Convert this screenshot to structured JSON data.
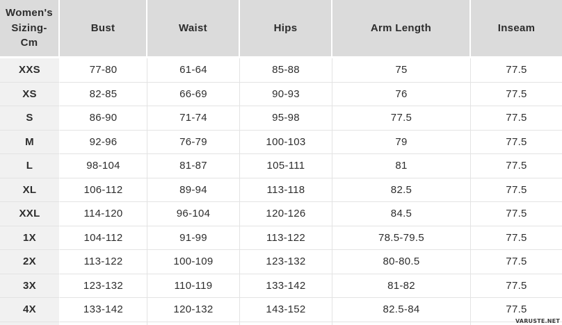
{
  "table": {
    "corner_header": "Women's Sizing- Cm",
    "columns": [
      "Bust",
      "Waist",
      "Hips",
      "Arm Length",
      "Inseam"
    ],
    "rows": [
      {
        "size": "XXS",
        "values": [
          "77-80",
          "61-64",
          "85-88",
          "75",
          "77.5"
        ]
      },
      {
        "size": "XS",
        "values": [
          "82-85",
          "66-69",
          "90-93",
          "76",
          "77.5"
        ]
      },
      {
        "size": "S",
        "values": [
          "86-90",
          "71-74",
          "95-98",
          "77.5",
          "77.5"
        ]
      },
      {
        "size": "M",
        "values": [
          "92-96",
          "76-79",
          "100-103",
          "79",
          "77.5"
        ]
      },
      {
        "size": "L",
        "values": [
          "98-104",
          "81-87",
          "105-111",
          "81",
          "77.5"
        ]
      },
      {
        "size": "XL",
        "values": [
          "106-112",
          "89-94",
          "113-118",
          "82.5",
          "77.5"
        ]
      },
      {
        "size": "XXL",
        "values": [
          "114-120",
          "96-104",
          "120-126",
          "84.5",
          "77.5"
        ]
      },
      {
        "size": "1X",
        "values": [
          "104-112",
          "91-99",
          "113-122",
          "78.5-79.5",
          "77.5"
        ]
      },
      {
        "size": "2X",
        "values": [
          "113-122",
          "100-109",
          "123-132",
          "80-80.5",
          "77.5"
        ]
      },
      {
        "size": "3X",
        "values": [
          "123-132",
          "110-119",
          "133-142",
          "81-82",
          "77.5"
        ]
      },
      {
        "size": "4X",
        "values": [
          "133-142",
          "120-132",
          "143-152",
          "82.5-84",
          "77.5"
        ]
      }
    ]
  },
  "watermark": "VARUSTE.NET",
  "colors": {
    "header_bg": "#dbdbdb",
    "size_column_bg": "#f1f1f1",
    "cell_bg": "#ffffff",
    "border": "#e3e3e3",
    "text": "#2d2d2d"
  }
}
